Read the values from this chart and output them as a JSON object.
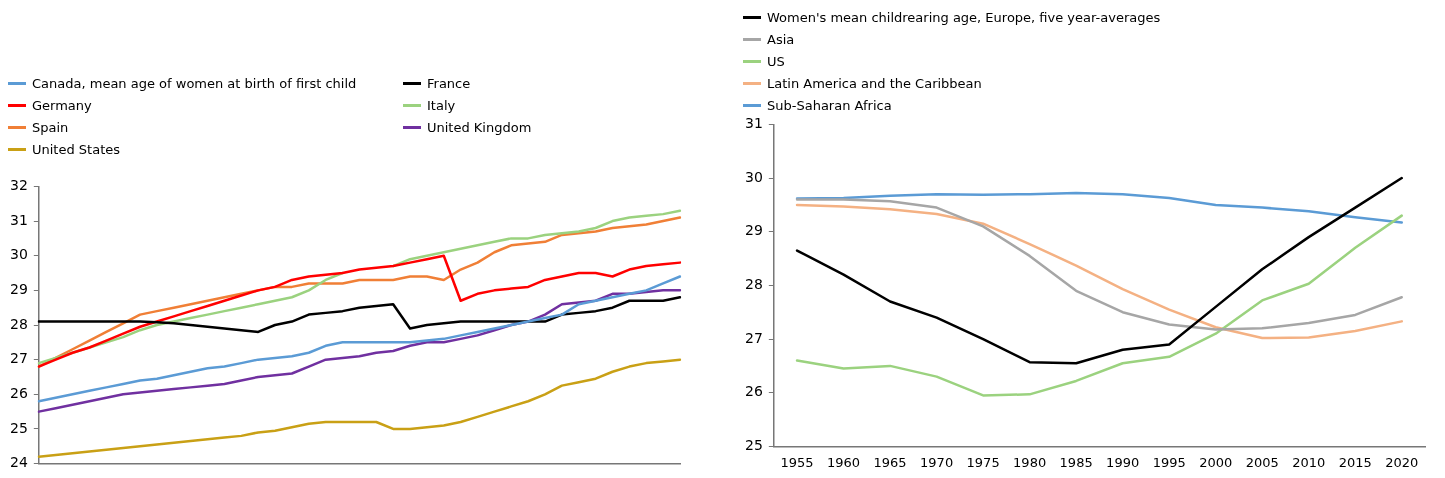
{
  "chart_data": [
    {
      "type": "line",
      "categories": [
        null,
        null,
        null,
        null,
        null,
        null,
        null,
        null,
        null,
        null,
        null,
        null,
        null,
        null,
        null,
        null,
        null,
        null,
        null,
        null,
        null,
        null,
        null,
        null,
        null,
        null,
        null,
        null,
        null,
        null,
        null,
        null,
        null,
        null,
        null,
        null,
        null,
        null,
        null
      ],
      "series": [
        {
          "name": "Canada, mean age of women at birth of first child",
          "color": "#5b9bd5",
          "values": [
            25.8,
            25.9,
            26.0,
            26.1,
            26.2,
            26.3,
            26.4,
            26.45,
            26.55,
            26.65,
            26.75,
            26.8,
            26.9,
            27.0,
            27.05,
            27.1,
            27.2,
            27.4,
            27.5,
            27.5,
            27.5,
            27.5,
            27.5,
            27.55,
            27.6,
            27.7,
            27.8,
            27.9,
            28.0,
            28.1,
            28.2,
            28.3,
            28.6,
            28.7,
            28.8,
            28.9,
            29.0,
            29.2,
            29.4
          ]
        },
        {
          "name": "France",
          "color": "#000000",
          "values": [
            28.1,
            28.1,
            28.1,
            28.1,
            28.1,
            28.1,
            28.1,
            28.08,
            28.05,
            28.0,
            27.95,
            27.9,
            27.85,
            27.8,
            28.0,
            28.1,
            28.3,
            28.35,
            28.4,
            28.5,
            28.55,
            28.6,
            27.9,
            28.0,
            28.05,
            28.1,
            28.1,
            28.1,
            28.1,
            28.1,
            28.1,
            28.3,
            28.35,
            28.4,
            28.5,
            28.7,
            28.7,
            28.7,
            28.8
          ]
        },
        {
          "name": "Germany",
          "color": "#ff0000",
          "values": [
            26.8,
            27.0,
            27.2,
            27.35,
            27.55,
            27.75,
            27.95,
            28.1,
            28.25,
            28.4,
            28.55,
            28.7,
            28.85,
            29.0,
            29.1,
            29.3,
            29.4,
            29.45,
            29.5,
            29.6,
            29.65,
            29.7,
            29.8,
            29.9,
            30.0,
            28.7,
            28.9,
            29.0,
            29.05,
            29.1,
            29.3,
            29.4,
            29.5,
            29.5,
            29.4,
            29.6,
            29.7,
            29.75,
            29.8
          ]
        },
        {
          "name": "Italy",
          "color": "#9bd27f",
          "values": [
            26.9,
            27.05,
            27.2,
            27.35,
            27.5,
            27.65,
            27.85,
            28.0,
            28.1,
            28.2,
            28.3,
            28.4,
            28.5,
            28.6,
            28.7,
            28.8,
            29.0,
            29.3,
            29.5,
            null,
            null,
            29.7,
            29.9,
            30.0,
            30.1,
            30.2,
            30.3,
            30.4,
            30.5,
            30.5,
            30.6,
            30.65,
            30.7,
            30.8,
            31.0,
            31.1,
            31.15,
            31.2,
            31.3
          ]
        },
        {
          "name": "Spain",
          "color": "#f07f36",
          "values": [
            26.8,
            27.05,
            27.3,
            27.55,
            27.8,
            28.05,
            28.3,
            28.4,
            28.5,
            28.6,
            28.7,
            28.8,
            28.9,
            29.0,
            29.1,
            29.1,
            29.2,
            29.2,
            29.2,
            29.3,
            29.3,
            29.3,
            29.4,
            29.4,
            29.3,
            29.6,
            29.8,
            30.1,
            30.3,
            30.35,
            30.4,
            30.6,
            30.65,
            30.7,
            30.8,
            30.85,
            30.9,
            31.0,
            31.1
          ]
        },
        {
          "name": "United Kingdom",
          "color": "#7030a0",
          "values": [
            25.5,
            25.6,
            25.7,
            25.8,
            25.9,
            26.0,
            26.05,
            26.1,
            26.15,
            26.2,
            26.25,
            26.3,
            26.4,
            26.5,
            26.55,
            26.6,
            26.8,
            27.0,
            27.05,
            27.1,
            27.2,
            27.25,
            27.4,
            27.5,
            27.5,
            27.6,
            27.7,
            27.85,
            28.0,
            28.1,
            28.3,
            28.6,
            28.65,
            28.7,
            28.9,
            28.9,
            28.95,
            29.0,
            29.0
          ]
        },
        {
          "name": "United States",
          "color": "#c9a015",
          "values": [
            24.2,
            24.25,
            24.3,
            24.35,
            24.4,
            24.45,
            24.5,
            24.55,
            24.6,
            24.65,
            24.7,
            24.75,
            24.8,
            24.9,
            24.95,
            25.05,
            25.15,
            25.2,
            25.2,
            25.2,
            25.2,
            25.0,
            25.0,
            25.05,
            25.1,
            25.2,
            25.35,
            25.5,
            25.65,
            25.8,
            26.0,
            26.25,
            26.35,
            26.45,
            26.65,
            26.8,
            26.9,
            26.95,
            27.0
          ]
        }
      ],
      "ylim": [
        24,
        32
      ],
      "yticks": [
        24,
        25,
        26,
        27,
        28,
        29,
        30,
        31,
        32
      ],
      "grid": false,
      "legend": "top left",
      "tick_labels": "y",
      "marker": "none",
      "line_style": "solid"
    },
    {
      "type": "line",
      "categories": [
        "1955",
        "1960",
        "1965",
        "1970",
        "1975",
        "1980",
        "1985",
        "1990",
        "1995",
        "2000",
        "2005",
        "2010",
        "2015",
        "2020"
      ],
      "series": [
        {
          "name": "Women's mean childrearing age, Europe, five year-averages",
          "color": "#000000",
          "values": [
            28.65,
            28.2,
            27.7,
            27.4,
            27.0,
            26.57,
            26.55,
            26.8,
            26.9,
            27.6,
            28.3,
            28.9,
            29.45,
            30.0
          ]
        },
        {
          "name": "Asia",
          "color": "#a6a6a6",
          "values": [
            29.6,
            29.6,
            29.57,
            29.45,
            29.1,
            28.55,
            27.9,
            27.5,
            27.27,
            27.18,
            27.2,
            27.3,
            27.45,
            27.78
          ]
        },
        {
          "name": "US",
          "color": "#9bd27f",
          "values": [
            26.6,
            26.45,
            26.5,
            26.3,
            25.95,
            25.97,
            26.22,
            26.55,
            26.67,
            27.1,
            27.72,
            28.03,
            28.7,
            29.3
          ]
        },
        {
          "name": "Latin America and the Caribbean",
          "color": "#f4b183",
          "values": [
            29.5,
            29.47,
            29.42,
            29.33,
            29.15,
            28.77,
            28.37,
            27.93,
            27.55,
            27.22,
            27.02,
            27.03,
            27.15,
            27.33
          ]
        },
        {
          "name": "Sub-Saharan Africa",
          "color": "#5b9bd5",
          "values": [
            29.62,
            29.63,
            29.67,
            29.7,
            29.69,
            29.7,
            29.72,
            29.7,
            29.63,
            29.5,
            29.45,
            29.38,
            29.27,
            29.17
          ]
        }
      ],
      "ylim": [
        25,
        31
      ],
      "yticks": [
        25,
        26,
        27,
        28,
        29,
        30,
        31
      ],
      "grid": false,
      "legend": "top left",
      "marker": "none",
      "line_style": "solid"
    }
  ]
}
